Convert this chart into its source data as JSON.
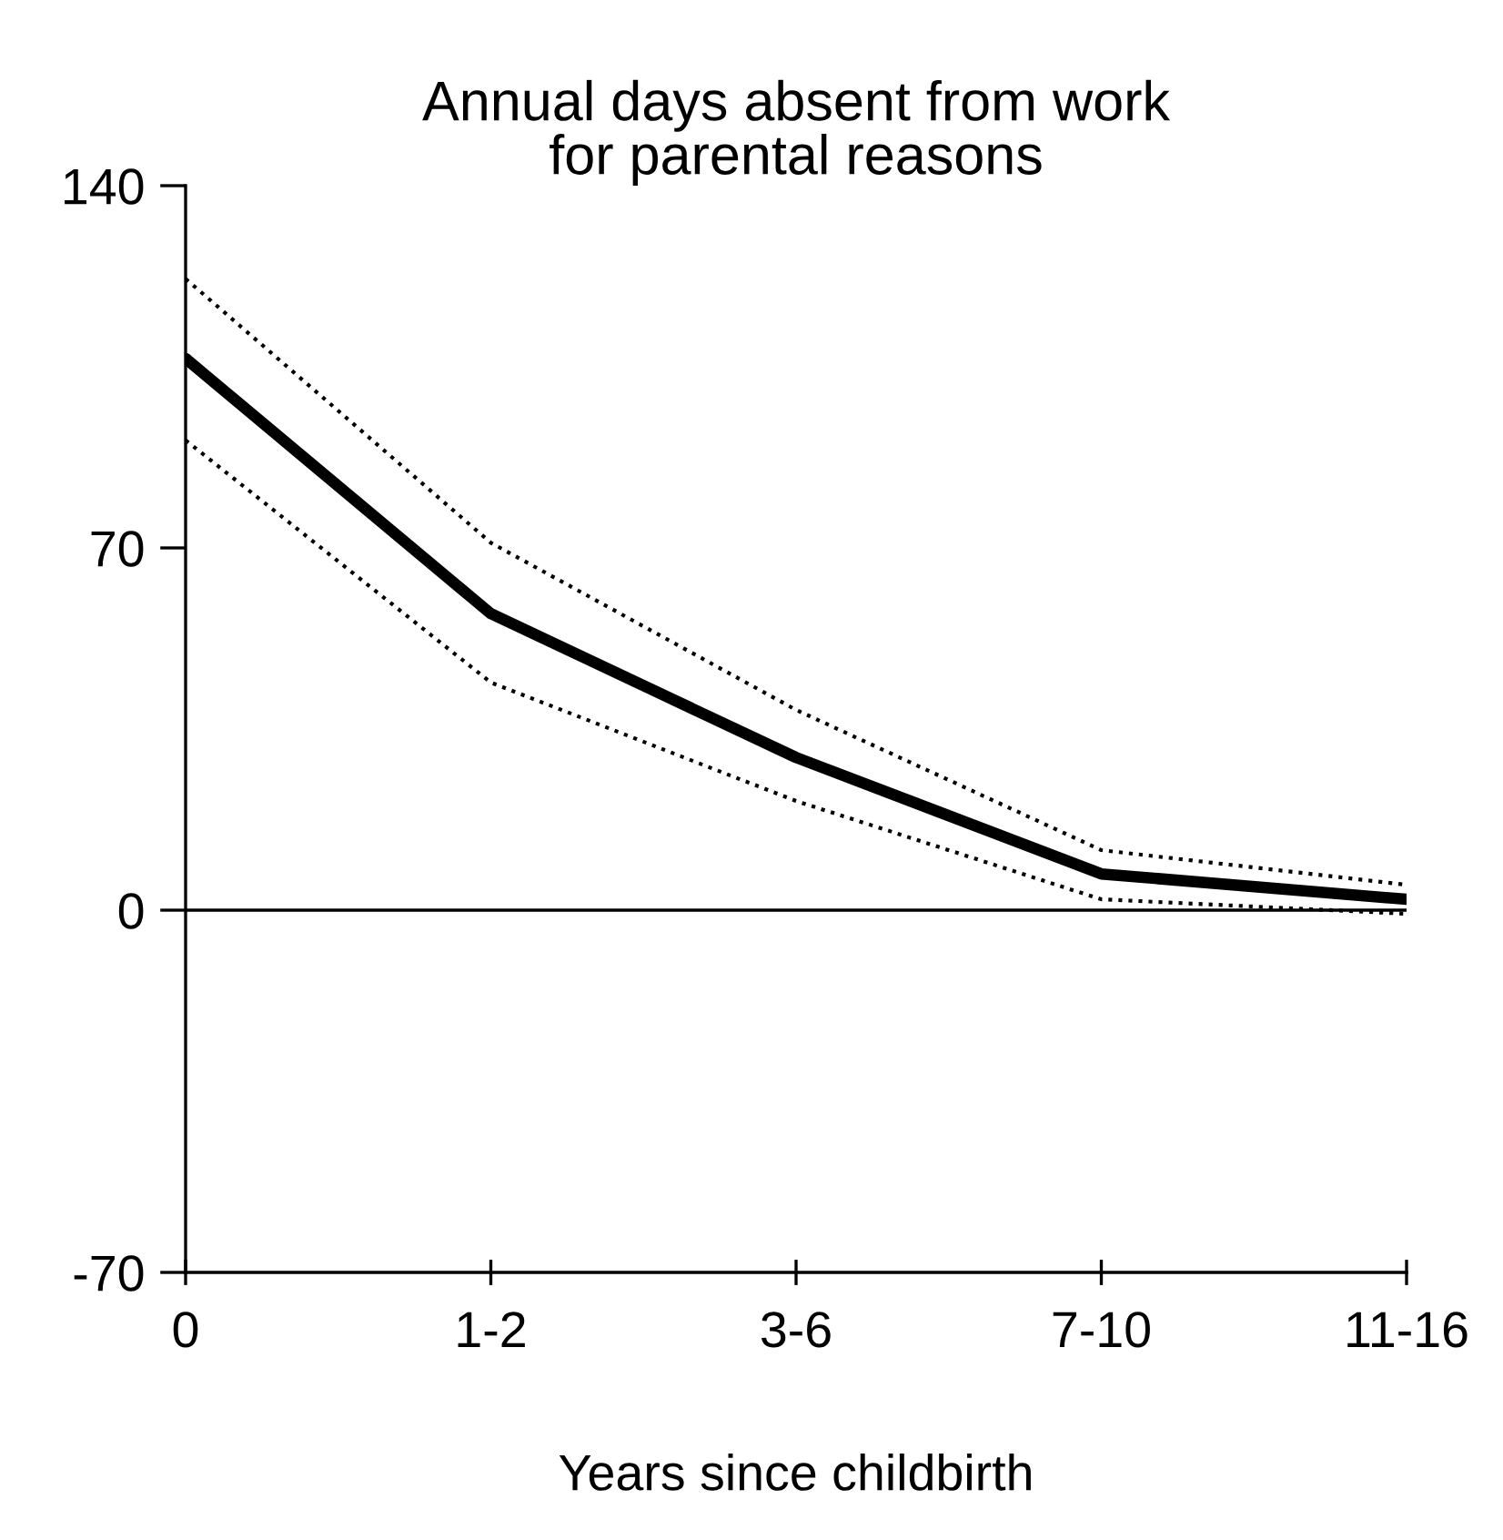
{
  "chart_data": {
    "type": "line",
    "title": "Annual days absent from work\nfor parental reasons",
    "xlabel": "Years since childbirth",
    "categories": [
      "0",
      "1-2",
      "3-6",
      "7-10",
      "11-16"
    ],
    "series": [
      {
        "color": "#000000",
        "values": [
          106.6,
          57.3,
          29.5,
          7,
          2.1
        ]
      },
      {
        "color": "#000000",
        "values": [
          122,
          71,
          38.7,
          11.6,
          4.9
        ],
        "line_style": "dotted"
      },
      {
        "color": "#000000",
        "values": [
          90.8,
          44,
          21.1,
          2.1,
          -0.7
        ],
        "line_style": "dotted"
      }
    ],
    "ylim": [
      -70,
      140
    ],
    "yticks": [
      -70,
      0,
      70,
      140
    ],
    "ref_lines": [
      {
        "axis": "y",
        "value": 0,
        "color": "#000000",
        "line_style": "solid"
      }
    ],
    "grid": false,
    "legend": false,
    "marker": "none",
    "line_style": "solid"
  }
}
